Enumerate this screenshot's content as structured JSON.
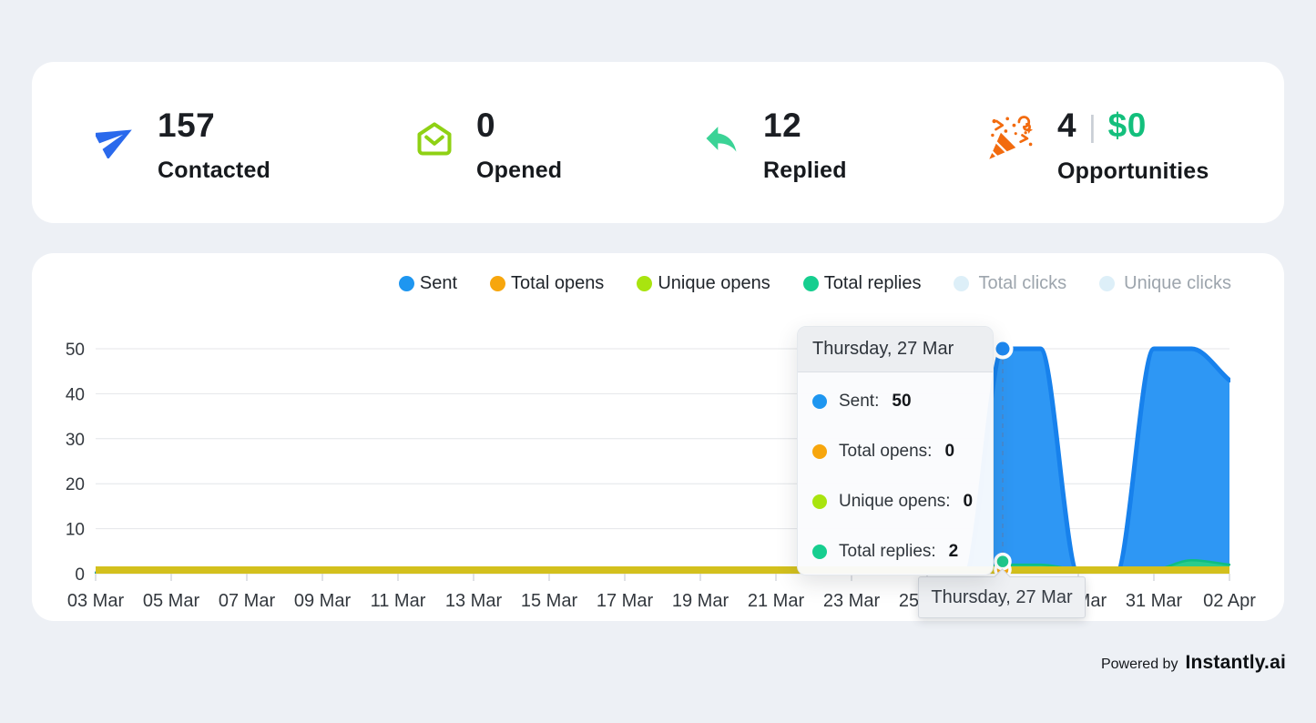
{
  "stats": [
    {
      "icon": "paper-plane-icon",
      "icon_color": "#2A69EC",
      "value": "157",
      "label": "Contacted"
    },
    {
      "icon": "envelope-open-icon",
      "icon_color": "#8FD114",
      "value": "0",
      "label": "Opened"
    },
    {
      "icon": "reply-arrow-icon",
      "icon_color": "#3BD396",
      "value": "12",
      "label": "Replied"
    },
    {
      "icon": "party-popper-icon",
      "icon_color": "#F26B0F",
      "value": "4",
      "divider": "|",
      "value2": "$0",
      "value2_color": "#13BF7C",
      "label": "Opportunities"
    }
  ],
  "legend": {
    "items": [
      {
        "label": "Sent",
        "color": "#1E96F0",
        "active": true
      },
      {
        "label": "Total opens",
        "color": "#F7A60D",
        "active": true
      },
      {
        "label": "Unique opens",
        "color": "#A9E40F",
        "active": true
      },
      {
        "label": "Total replies",
        "color": "#16CE8F",
        "active": true
      },
      {
        "label": "Total clicks",
        "color": "#DDEFF8",
        "active": false
      },
      {
        "label": "Unique clicks",
        "color": "#DDEFF8",
        "active": false
      }
    ]
  },
  "chart_data": {
    "type": "area",
    "num_points": 31,
    "x_start": "03 Mar",
    "x_end": "02 Apr",
    "x_tick_labels": [
      "03 Mar",
      "05 Mar",
      "07 Mar",
      "09 Mar",
      "11 Mar",
      "13 Mar",
      "15 Mar",
      "17 Mar",
      "19 Mar",
      "21 Mar",
      "23 Mar",
      "25 Mar",
      "27 Mar",
      "29 Mar",
      "31 Mar",
      "02 Apr"
    ],
    "x_tick_step": 2,
    "ylim": [
      0,
      50
    ],
    "yticks": [
      0,
      10,
      20,
      30,
      40,
      50
    ],
    "grid": true,
    "legend_position": "top-right",
    "series": [
      {
        "name": "Sent",
        "plotted": true,
        "fill": "#2E97F4",
        "stroke": "#1781EC",
        "stroke_width": 5,
        "values": [
          0,
          0,
          0,
          0,
          0,
          0,
          0,
          0,
          0,
          0,
          0,
          0,
          0,
          0,
          0,
          0,
          0,
          0,
          0,
          0,
          0,
          0,
          0,
          0,
          50,
          50,
          0,
          0,
          50,
          50,
          43
        ]
      },
      {
        "name": "Total opens",
        "plotted": false,
        "fill": "#F7A60D",
        "values": [
          0,
          0,
          0,
          0,
          0,
          0,
          0,
          0,
          0,
          0,
          0,
          0,
          0,
          0,
          0,
          0,
          0,
          0,
          0,
          0,
          0,
          0,
          0,
          0,
          0,
          0,
          0,
          0,
          0,
          0,
          0
        ]
      },
      {
        "name": "Unique opens",
        "plotted": false,
        "fill": "#A9E40F",
        "values": [
          0,
          0,
          0,
          0,
          0,
          0,
          0,
          0,
          0,
          0,
          0,
          0,
          0,
          0,
          0,
          0,
          0,
          0,
          0,
          0,
          0,
          0,
          0,
          0,
          0,
          0,
          0,
          0,
          0,
          0,
          0
        ]
      },
      {
        "name": "Total replies",
        "plotted": true,
        "fill": "#2ACC8C",
        "stroke": "#0FBE81",
        "stroke_width": 2.5,
        "values": [
          0,
          0,
          0,
          0,
          0,
          0,
          0,
          0,
          0,
          0,
          0,
          0,
          0,
          0,
          0,
          0,
          0,
          0,
          0,
          0,
          0,
          0,
          0,
          0,
          2,
          2,
          1,
          1,
          1,
          3,
          2
        ]
      }
    ],
    "zero_band": {
      "color": "#D3C01D",
      "height": 8
    },
    "cursor": {
      "index": 24,
      "line_color": "#4A86C8",
      "markers": [
        {
          "series": "Total opens",
          "color": "#F2A60F",
          "value": 0.9,
          "r": 8
        },
        {
          "series": "Total replies",
          "color": "#1FC98C",
          "value": 2.7,
          "r": 8
        },
        {
          "series": "Sent",
          "color": "#1E88F0",
          "value": 50,
          "r": 9.5
        }
      ]
    }
  },
  "tooltip": {
    "title": "Thursday, 27 Mar",
    "rows": [
      {
        "label": "Sent:",
        "value": "50",
        "color": "#1E96F0"
      },
      {
        "label": "Total opens:",
        "value": "0",
        "color": "#F7A60D"
      },
      {
        "label": "Unique opens:",
        "value": "0",
        "color": "#A9E40F"
      },
      {
        "label": "Total replies:",
        "value": "2",
        "color": "#16CE8F"
      }
    ]
  },
  "axis_tooltip": {
    "text": "Thursday, 27 Mar"
  },
  "footer": {
    "powered_by": "Powered by",
    "brand": "Instantly.ai"
  }
}
